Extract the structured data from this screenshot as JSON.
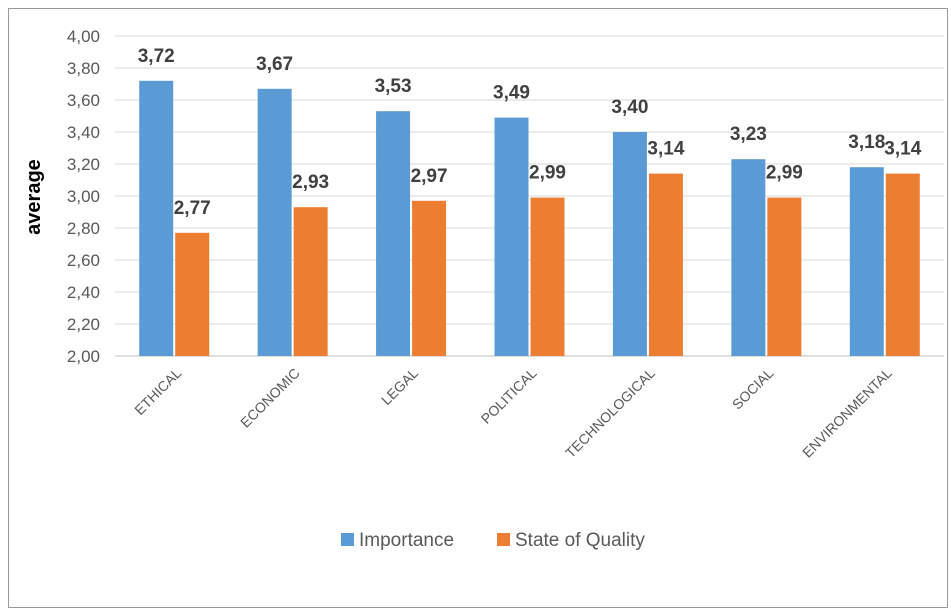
{
  "chart_data": {
    "type": "bar",
    "categories": [
      "ETHICAL",
      "ECONOMIC",
      "LEGAL",
      "POLITICAL",
      "TECHNOLOGICAL",
      "SOCIAL",
      "ENVIRONMENTAL"
    ],
    "series": [
      {
        "name": "Importance",
        "color": "#5b9bd5",
        "values": [
          3.72,
          3.67,
          3.53,
          3.49,
          3.4,
          3.23,
          3.18
        ]
      },
      {
        "name": "State of Quality",
        "color": "#ed7d31",
        "values": [
          2.77,
          2.93,
          2.97,
          2.99,
          3.14,
          2.99,
          3.14
        ]
      }
    ],
    "data_labels": [
      [
        "3,72",
        "3,67",
        "3,53",
        "3,49",
        "3,40",
        "3,23",
        "3,18"
      ],
      [
        "2,77",
        "2,93",
        "2,97",
        "2,99",
        "3,14",
        "2,99",
        "3,14"
      ]
    ],
    "xlabel": "",
    "ylabel": "average",
    "ylim": [
      2.0,
      4.0
    ],
    "yticks": [
      "2,00",
      "2,20",
      "2,40",
      "2,60",
      "2,80",
      "3,00",
      "3,20",
      "3,40",
      "3,60",
      "3,80",
      "4,00"
    ],
    "grid": true,
    "legend_position": "bottom"
  }
}
